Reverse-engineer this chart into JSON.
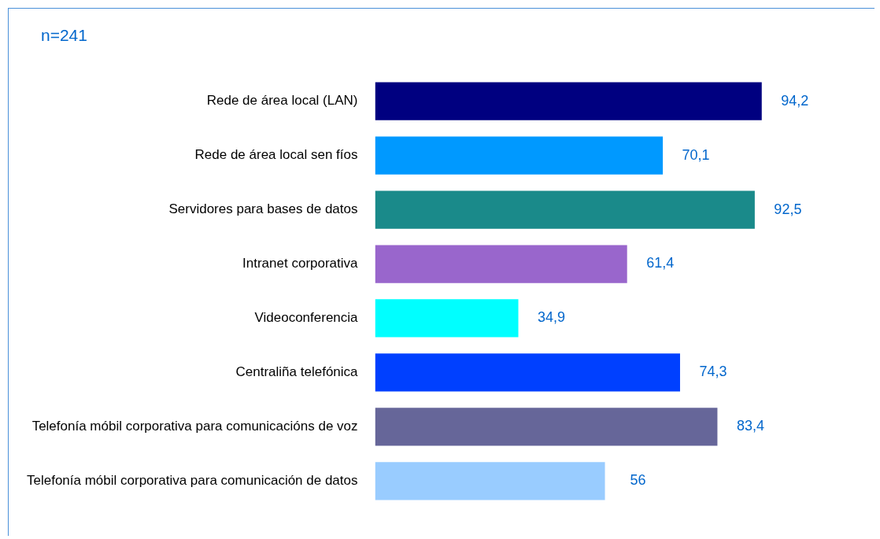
{
  "chart_data": {
    "type": "bar",
    "orientation": "horizontal",
    "title": "n=241",
    "categories": [
      "Rede de área local (LAN)",
      "Rede de área local sen fíos",
      "Servidores para bases de datos",
      "Intranet corporativa",
      "Videoconferencia",
      "Centraliña telefónica",
      "Telefonía móbil corporativa para comunicacións de voz",
      "Telefonía móbil corporativa para comunicación de datos"
    ],
    "values": [
      94.2,
      70.1,
      92.5,
      61.4,
      34.9,
      74.3,
      83.4,
      56
    ],
    "value_labels": [
      "94,2",
      "70,1",
      "92,5",
      "61,4",
      "34,9",
      "74,3",
      "83,4",
      "56"
    ],
    "colors": [
      "#000080",
      "#0099ff",
      "#1a8a8a",
      "#9966cc",
      "#00ffff",
      "#0040ff",
      "#666699",
      "#99ccff"
    ],
    "legend": false
  }
}
